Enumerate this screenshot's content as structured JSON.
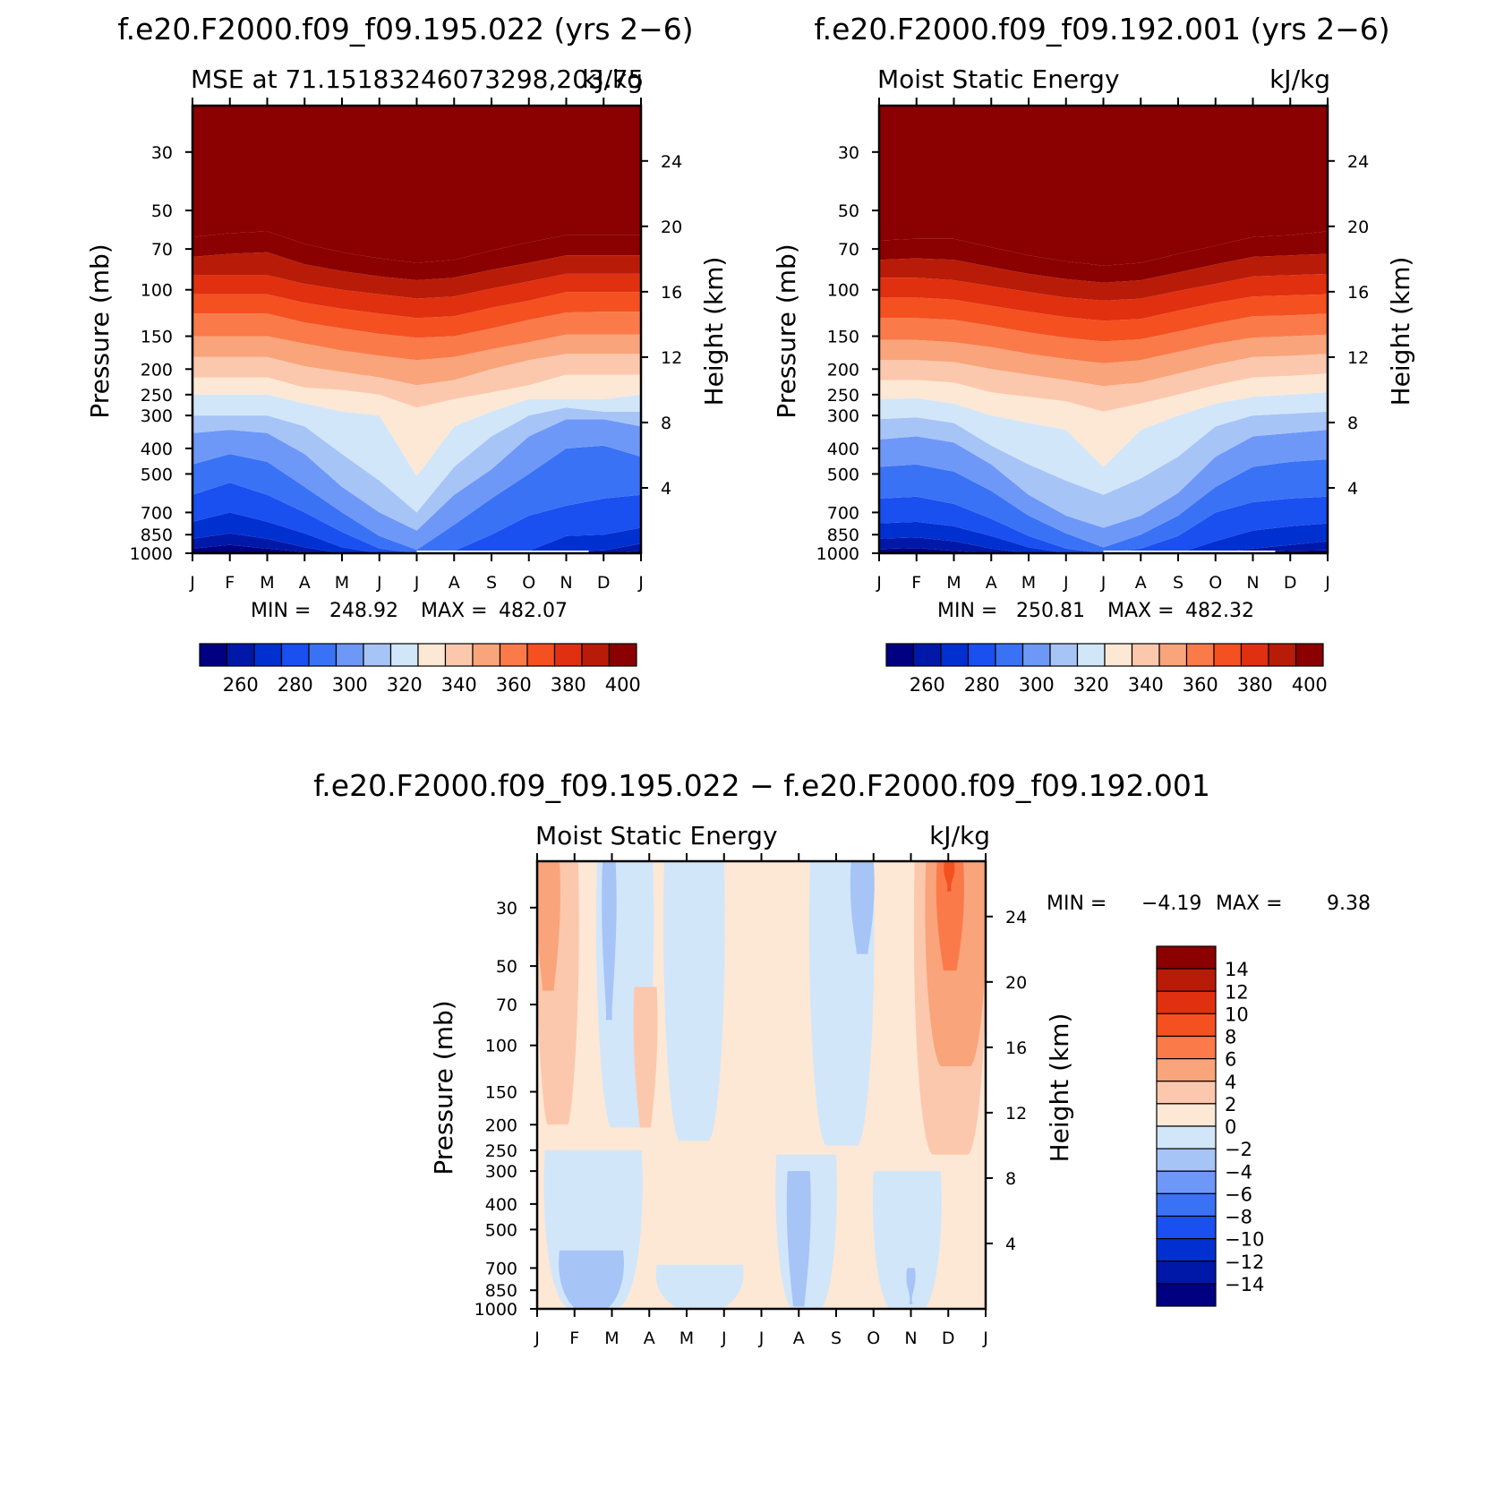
{
  "colors": {
    "mse": [
      "#000080",
      "#0018a8",
      "#0030d0",
      "#1a4ff0",
      "#3a72f5",
      "#6e98f7",
      "#a7c4f7",
      "#d2e6fa",
      "#fde8d5",
      "#fcc8ad",
      "#f9a47a",
      "#fb7a4a",
      "#f55020",
      "#e03010",
      "#b81c08",
      "#8b0000"
    ],
    "diff": [
      "#000080",
      "#0018a8",
      "#0030d0",
      "#1a4ff0",
      "#3a72f5",
      "#6e98f7",
      "#a7c4f7",
      "#d2e6fa",
      "#fde8d5",
      "#fcc8ad",
      "#f9a47a",
      "#fb7a4a",
      "#f55020",
      "#e03010",
      "#b81c08",
      "#8b0000"
    ]
  },
  "chart_data": [
    {
      "type": "heatmap",
      "panel": "test",
      "case_title": "f.e20.F2000.f09_f09.195.022 (yrs 2−6)",
      "left_title": "MSE at 71.15183246073298,203.75",
      "right_title": "kJ/kg",
      "x_ticks": [
        "J",
        "F",
        "M",
        "A",
        "M",
        "J",
        "J",
        "A",
        "S",
        "O",
        "N",
        "D",
        "J"
      ],
      "xlabel": "",
      "ylabel": "Pressure (mb)",
      "y2label": "Height (km)",
      "pressure_ticks": [
        30,
        50,
        70,
        100,
        150,
        200,
        250,
        300,
        400,
        500,
        700,
        850,
        1000
      ],
      "height_ticks": [
        24,
        20,
        16,
        12,
        8,
        4
      ],
      "ylim": [
        1000,
        20
      ],
      "stats": {
        "min_label": "MIN =",
        "min": "248.92",
        "max_label": "MAX =",
        "max": "482.07"
      },
      "colorbar_labels": [
        "260",
        "280",
        "300",
        "320",
        "340",
        "360",
        "380",
        "400"
      ],
      "contour_levels": [
        255,
        260,
        270,
        280,
        290,
        300,
        310,
        320,
        330,
        340,
        350,
        360,
        370,
        380,
        390,
        400
      ],
      "layers": [
        {
          "min": 248,
          "max": 260
        },
        {
          "min": 260,
          "max": 270
        },
        {
          "min": 270,
          "max": 280
        },
        {
          "min": 280,
          "max": 290
        },
        {
          "min": 290,
          "max": 300
        },
        {
          "min": 300,
          "max": 310
        },
        {
          "min": 310,
          "max": 320
        },
        {
          "min": 320,
          "max": 330
        },
        {
          "min": 330,
          "max": 340
        },
        {
          "min": 340,
          "max": 350
        },
        {
          "min": 350,
          "max": 360
        },
        {
          "min": 360,
          "max": 370
        },
        {
          "min": 370,
          "max": 380
        },
        {
          "min": 380,
          "max": 390
        },
        {
          "min": 390,
          "max": 400
        },
        {
          "min": 400,
          "max": 482
        }
      ],
      "boundary_pressures": [
        [
          1000,
          997,
          1000,
          1000,
          1000,
          1000,
          1000,
          1000,
          1000,
          1000,
          1000,
          1000,
          1000
        ],
        [
          960,
          930,
          960,
          990,
          1000,
          1000,
          1000,
          1000,
          1000,
          1000,
          1000,
          1000,
          980
        ],
        [
          880,
          840,
          880,
          950,
          1000,
          1000,
          1000,
          1000,
          1000,
          1000,
          985,
          975,
          920
        ],
        [
          760,
          700,
          760,
          840,
          950,
          1000,
          1000,
          1000,
          1000,
          980,
          860,
          850,
          800
        ],
        [
          600,
          540,
          600,
          700,
          830,
          960,
          1000,
          980,
          850,
          720,
          660,
          620,
          600
        ],
        [
          460,
          420,
          450,
          560,
          700,
          860,
          970,
          780,
          620,
          500,
          400,
          390,
          430
        ],
        [
          350,
          340,
          350,
          420,
          560,
          700,
          820,
          600,
          480,
          360,
          310,
          310,
          330
        ],
        [
          300,
          300,
          300,
          330,
          420,
          530,
          700,
          470,
          360,
          300,
          280,
          290,
          290
        ],
        [
          250,
          250,
          250,
          270,
          290,
          300,
          510,
          330,
          290,
          260,
          260,
          260,
          250
        ],
        [
          215,
          215,
          215,
          235,
          240,
          250,
          280,
          260,
          245,
          230,
          210,
          210,
          210
        ],
        [
          180,
          180,
          180,
          195,
          205,
          215,
          230,
          220,
          200,
          185,
          175,
          175,
          175
        ],
        [
          150,
          150,
          150,
          160,
          170,
          178,
          185,
          180,
          168,
          158,
          148,
          148,
          148
        ],
        [
          123,
          123,
          123,
          133,
          140,
          147,
          152,
          150,
          140,
          130,
          122,
          121,
          121
        ],
        [
          104,
          104,
          104,
          112,
          118,
          123,
          128,
          126,
          117,
          110,
          102,
          102,
          102
        ],
        [
          88,
          88,
          88,
          95,
          100,
          104,
          108,
          106,
          99,
          93,
          87,
          87,
          87
        ],
        [
          75,
          73,
          72,
          80,
          85,
          89,
          92,
          90,
          84,
          79,
          74,
          74,
          74
        ],
        [
          63,
          61,
          60,
          67,
          72,
          76,
          79,
          77,
          71,
          66,
          62,
          62,
          62
        ]
      ]
    },
    {
      "type": "heatmap",
      "panel": "control",
      "case_title": "f.e20.F2000.f09_f09.192.001 (yrs 2−6)",
      "left_title": "Moist Static Energy",
      "right_title": "kJ/kg",
      "x_ticks": [
        "J",
        "F",
        "M",
        "A",
        "M",
        "J",
        "J",
        "A",
        "S",
        "O",
        "N",
        "D",
        "J"
      ],
      "xlabel": "",
      "ylabel": "Pressure (mb)",
      "y2label": "Height (km)",
      "pressure_ticks": [
        30,
        50,
        70,
        100,
        150,
        200,
        250,
        300,
        400,
        500,
        700,
        850,
        1000
      ],
      "height_ticks": [
        24,
        20,
        16,
        12,
        8,
        4
      ],
      "ylim": [
        1000,
        20
      ],
      "stats": {
        "min_label": "MIN =",
        "min": "250.81",
        "max_label": "MAX =",
        "max": "482.32"
      },
      "colorbar_labels": [
        "260",
        "280",
        "300",
        "320",
        "340",
        "360",
        "380",
        "400"
      ],
      "boundary_pressures": [
        [
          1000,
          995,
          1000,
          1000,
          1000,
          1000,
          1000,
          1000,
          1000,
          1000,
          1000,
          1000,
          1000
        ],
        [
          965,
          955,
          980,
          1000,
          1000,
          1000,
          1000,
          1000,
          1000,
          1000,
          990,
          980,
          975
        ],
        [
          880,
          870,
          900,
          960,
          1000,
          1000,
          1000,
          1000,
          1000,
          1000,
          960,
          930,
          900
        ],
        [
          770,
          760,
          790,
          860,
          950,
          1000,
          1000,
          1000,
          1000,
          900,
          820,
          790,
          770
        ],
        [
          620,
          610,
          650,
          740,
          860,
          960,
          1000,
          960,
          860,
          700,
          640,
          620,
          610
        ],
        [
          470,
          460,
          490,
          580,
          720,
          840,
          950,
          850,
          720,
          560,
          470,
          450,
          440
        ],
        [
          370,
          360,
          380,
          460,
          600,
          720,
          800,
          720,
          590,
          430,
          360,
          350,
          340
        ],
        [
          310,
          305,
          320,
          390,
          460,
          530,
          600,
          520,
          430,
          330,
          300,
          295,
          290
        ],
        [
          260,
          258,
          270,
          300,
          320,
          340,
          470,
          340,
          300,
          270,
          255,
          250,
          245
        ],
        [
          220,
          220,
          225,
          245,
          255,
          265,
          290,
          270,
          250,
          230,
          215,
          212,
          208
        ],
        [
          185,
          185,
          188,
          200,
          210,
          220,
          232,
          225,
          208,
          192,
          180,
          178,
          175
        ],
        [
          155,
          155,
          158,
          165,
          175,
          183,
          190,
          185,
          172,
          160,
          152,
          150,
          148
        ],
        [
          128,
          128,
          130,
          137,
          145,
          152,
          157,
          154,
          144,
          134,
          126,
          125,
          123
        ],
        [
          107,
          107,
          109,
          115,
          121,
          127,
          131,
          129,
          120,
          112,
          106,
          105,
          104
        ],
        [
          90,
          90,
          92,
          97,
          102,
          107,
          110,
          108,
          101,
          95,
          89,
          88,
          87
        ],
        [
          77,
          76,
          77,
          82,
          87,
          91,
          94,
          92,
          86,
          80,
          75,
          74,
          73
        ],
        [
          65,
          64,
          64,
          69,
          74,
          78,
          81,
          79,
          73,
          68,
          63,
          62,
          60
        ]
      ]
    },
    {
      "type": "heatmap",
      "panel": "difference",
      "case_title": "f.e20.F2000.f09_f09.195.022 − f.e20.F2000.f09_f09.192.001",
      "left_title": "Moist Static Energy",
      "right_title": "kJ/kg",
      "x_ticks": [
        "J",
        "F",
        "M",
        "A",
        "M",
        "J",
        "J",
        "A",
        "S",
        "O",
        "N",
        "D",
        "J"
      ],
      "ylabel": "Pressure (mb)",
      "y2label": "Height (km)",
      "pressure_ticks": [
        30,
        50,
        70,
        100,
        150,
        200,
        250,
        300,
        400,
        500,
        700,
        850,
        1000
      ],
      "height_ticks": [
        24,
        20,
        16,
        12,
        8,
        4
      ],
      "ylim": [
        1000,
        20
      ],
      "stats": {
        "min_label": "MIN =",
        "min": "−4.19",
        "max_label": "MAX =",
        "max": "9.38"
      },
      "colorbar_labels": [
        "14",
        "12",
        "10",
        "8",
        "6",
        "4",
        "2",
        "0",
        "−2",
        "−4",
        "−6",
        "−8",
        "−10",
        "−12",
        "−14"
      ],
      "regions": [
        {
          "name": "upper-warm-band",
          "class": 8,
          "months": [
            0.0,
            1.3
          ],
          "p": [
            20,
            230
          ]
        },
        {
          "name": "jan-upper-2to4",
          "class": 9,
          "months": [
            0.0,
            1.1
          ],
          "p": [
            20,
            200
          ]
        },
        {
          "name": "jan-upper-4to6",
          "class": 10,
          "months": [
            0.0,
            0.6
          ],
          "p": [
            20,
            62
          ]
        },
        {
          "name": "mar-upper-cool",
          "class": 7,
          "months": [
            1.6,
            3.1
          ],
          "p": [
            20,
            205
          ]
        },
        {
          "name": "mar-upper-cool-2",
          "class": 6,
          "months": [
            1.75,
            2.1
          ],
          "p": [
            20,
            80
          ]
        },
        {
          "name": "apr-upper-2to4",
          "class": 9,
          "months": [
            2.6,
            3.2
          ],
          "p": [
            60,
            205
          ]
        },
        {
          "name": "may-jun-cool",
          "class": 7,
          "months": [
            3.4,
            5.0
          ],
          "p": [
            20,
            230
          ]
        },
        {
          "name": "aug-upper-cool",
          "class": 7,
          "months": [
            7.3,
            9.0
          ],
          "p": [
            20,
            240
          ]
        },
        {
          "name": "sep-upper-cool-2",
          "class": 6,
          "months": [
            8.4,
            9.0
          ],
          "p": [
            20,
            45
          ]
        },
        {
          "name": "nov-dec-upper-2to4",
          "class": 9,
          "months": [
            10.1,
            12.0
          ],
          "p": [
            20,
            260
          ]
        },
        {
          "name": "dec-upper-4to6",
          "class": 10,
          "months": [
            10.4,
            12.0
          ],
          "p": [
            20,
            120
          ]
        },
        {
          "name": "dec-upper-6to8",
          "class": 11,
          "months": [
            10.7,
            11.4
          ],
          "p": [
            20,
            52
          ]
        },
        {
          "name": "dec-upper-8to10",
          "class": 12,
          "months": [
            10.9,
            11.15
          ],
          "p": [
            20,
            26
          ]
        },
        {
          "name": "low-cool-jan-mar",
          "class": 7,
          "months": [
            0.2,
            2.8
          ],
          "p": [
            250,
            1000
          ]
        },
        {
          "name": "low-cool-jan-mar-2",
          "class": 6,
          "months": [
            0.6,
            2.3
          ],
          "p": [
            600,
            1000
          ]
        },
        {
          "name": "low-cool-may-jul",
          "class": 7,
          "months": [
            3.2,
            5.5
          ],
          "p": [
            680,
            1000
          ]
        },
        {
          "name": "low-cool-aug",
          "class": 7,
          "months": [
            6.4,
            8.0
          ],
          "p": [
            260,
            1000
          ]
        },
        {
          "name": "low-cool-aug-2",
          "class": 6,
          "months": [
            6.7,
            7.3
          ],
          "p": [
            300,
            980
          ]
        },
        {
          "name": "low-cool-oct-nov",
          "class": 7,
          "months": [
            9.0,
            10.8
          ],
          "p": [
            300,
            1000
          ]
        },
        {
          "name": "low-cool-nov-2",
          "class": 6,
          "months": [
            9.9,
            10.1
          ],
          "p": [
            700,
            960
          ]
        }
      ]
    }
  ]
}
